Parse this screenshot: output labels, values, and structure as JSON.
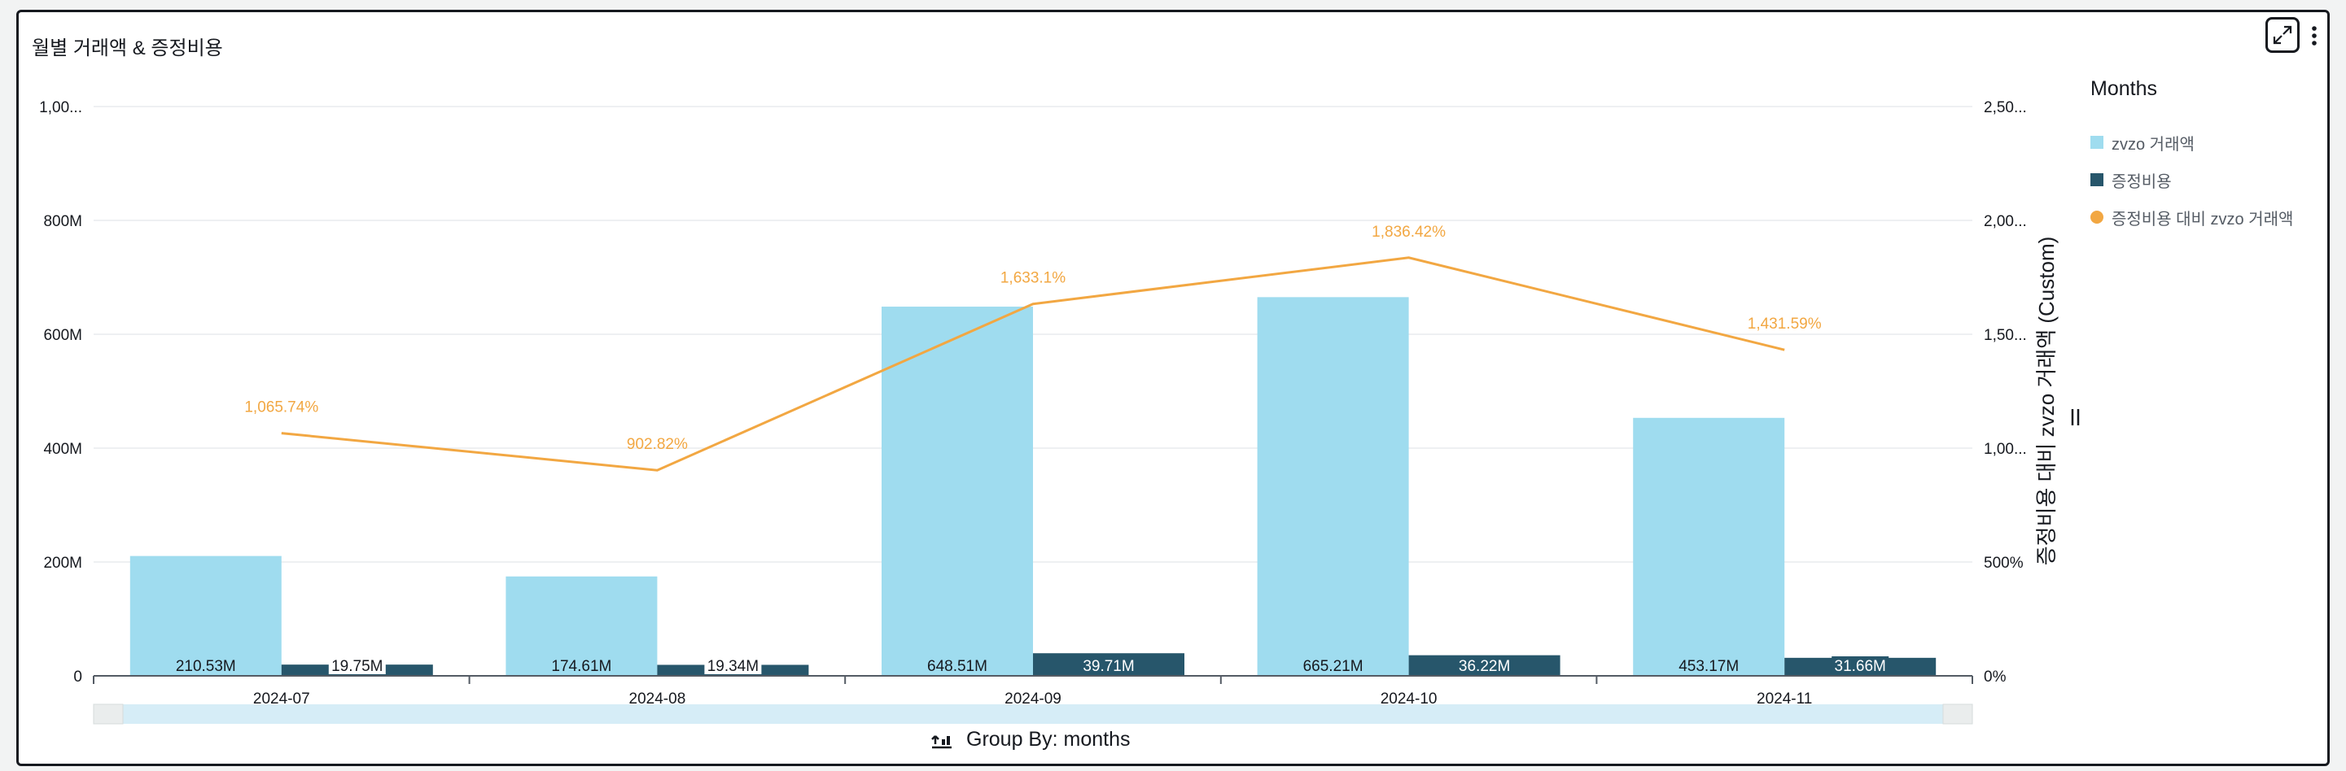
{
  "header": {
    "title": "월별 거래액 & 증정비용"
  },
  "controls": {
    "expand_icon": "expand-icon",
    "more_icon": "more-vertical-icon"
  },
  "legend": {
    "title": "Months",
    "items": [
      {
        "label": "zvzo 거래액",
        "color": "#9fdcef",
        "shape": "square"
      },
      {
        "label": "증정비용",
        "color": "#27566b",
        "shape": "square"
      },
      {
        "label": "증정비용 대비 zvzo 거래액",
        "color": "#f2a742",
        "shape": "circle"
      }
    ]
  },
  "footer": {
    "group_by_label": "Group By: months",
    "icon": "group-by-icon"
  },
  "chart_data": {
    "type": "bar",
    "categories": [
      "2024-07",
      "2024-08",
      "2024-09",
      "2024-10",
      "2024-11"
    ],
    "series": [
      {
        "name": "zvzo 거래액",
        "values": [
          210530000,
          174610000,
          648510000,
          665210000,
          453170000
        ],
        "labels": [
          "210.53M",
          "174.61M",
          "648.51M",
          "665.21M",
          "453.17M"
        ],
        "color": "#9fdcef",
        "axis": "left"
      },
      {
        "name": "증정비용",
        "values": [
          19750000,
          19340000,
          39710000,
          36220000,
          31660000
        ],
        "labels": [
          "19.75M",
          "19.34M",
          "39.71M",
          "36.22M",
          "31.66M"
        ],
        "color": "#27566b",
        "axis": "left"
      },
      {
        "name": "증정비용 대비 zvzo 거래액",
        "type": "line",
        "values": [
          1065.74,
          902.82,
          1633.1,
          1836.42,
          1431.59
        ],
        "labels": [
          "1,065.74%",
          "902.82%",
          "1,633.1%",
          "1,836.42%",
          "1,431.59%"
        ],
        "color": "#f2a742",
        "axis": "right"
      }
    ],
    "y_left": {
      "ticks": [
        "0",
        "200M",
        "400M",
        "600M",
        "800M",
        "1,00..."
      ],
      "ylim": [
        0,
        1000000000
      ]
    },
    "y_right": {
      "label": "증정비용 대비 zvzo 거래액 (Custom)",
      "ticks": [
        "0%",
        "500%",
        "1,00...",
        "1,50...",
        "2,00...",
        "2,50..."
      ],
      "ylim": [
        0,
        2500
      ]
    },
    "grid": true,
    "legend_position": "right"
  }
}
